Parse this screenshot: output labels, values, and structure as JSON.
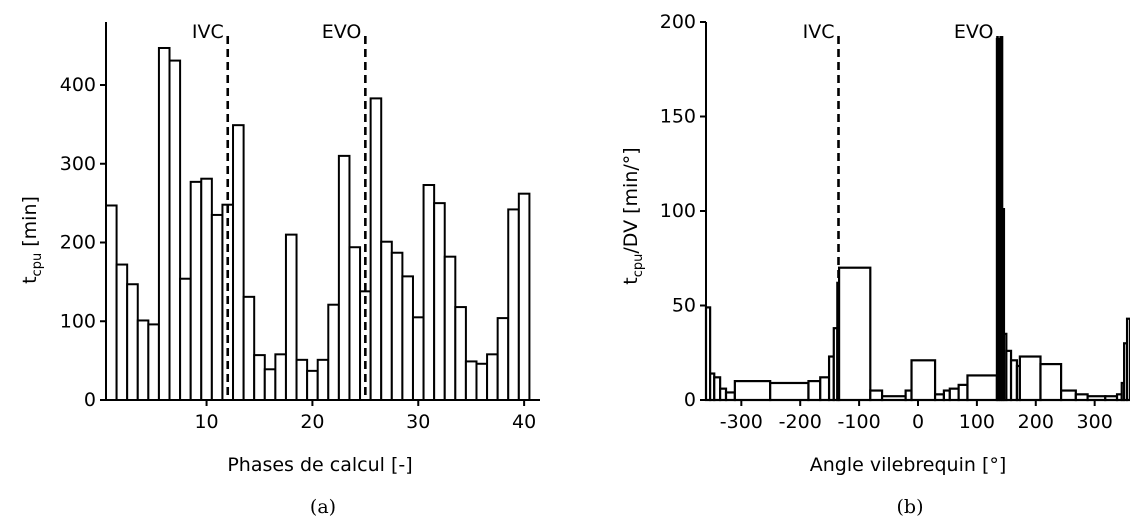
{
  "chart_data": [
    {
      "type": "bar",
      "panel_caption": "(a)",
      "xlabel": "Phases de calcul [-]",
      "ylabel_main": "t",
      "ylabel_sub": "cpu",
      "ylabel_unit": " [min]",
      "xlim": [
        0.5,
        41.5
      ],
      "ylim": [
        0,
        480
      ],
      "xticks": [
        10,
        20,
        30,
        40
      ],
      "yticks": [
        0,
        100,
        200,
        300,
        400
      ],
      "grid": false,
      "x": [
        1,
        2,
        3,
        4,
        5,
        6,
        7,
        8,
        9,
        10,
        11,
        12,
        13,
        14,
        15,
        16,
        17,
        18,
        19,
        20,
        21,
        22,
        23,
        24,
        25,
        26,
        27,
        28,
        29,
        30,
        31,
        32,
        33,
        34,
        35,
        36,
        37,
        38,
        39,
        40,
        41
      ],
      "values": [
        247,
        172,
        147,
        101,
        96,
        447,
        431,
        154,
        277,
        281,
        235,
        248,
        349,
        131,
        57,
        39,
        58,
        210,
        51,
        37,
        51,
        121,
        310,
        194,
        138,
        383,
        201,
        187,
        157,
        105,
        273,
        250,
        182,
        118,
        49,
        46,
        58,
        104,
        242,
        262,
        0
      ],
      "annotations": [
        {
          "label": "IVC",
          "x": 12
        },
        {
          "label": "EVO",
          "x": 25
        }
      ]
    },
    {
      "type": "bar",
      "panel_caption": "(b)",
      "xlabel": "Angle vilebrequin [°]",
      "ylabel_main": "t",
      "ylabel_sub": "cpu",
      "ylabel_unit": "/DV [min/°]",
      "xlim": [
        -360,
        360
      ],
      "ylim": [
        0,
        200
      ],
      "xticks": [
        -300,
        -200,
        -100,
        0,
        100,
        200,
        300
      ],
      "yticks": [
        0,
        50,
        100,
        150,
        200
      ],
      "grid": false,
      "bins": [
        {
          "x0": -360,
          "x1": -353,
          "value": 49
        },
        {
          "x0": -353,
          "x1": -346,
          "value": 14
        },
        {
          "x0": -346,
          "x1": -336,
          "value": 12
        },
        {
          "x0": -336,
          "x1": -326,
          "value": 6
        },
        {
          "x0": -326,
          "x1": -311,
          "value": 4
        },
        {
          "x0": -311,
          "x1": -251,
          "value": 10
        },
        {
          "x0": -251,
          "x1": -186,
          "value": 9
        },
        {
          "x0": -186,
          "x1": -166,
          "value": 10
        },
        {
          "x0": -166,
          "x1": -151,
          "value": 12
        },
        {
          "x0": -151,
          "x1": -143,
          "value": 23
        },
        {
          "x0": -143,
          "x1": -137,
          "value": 38
        },
        {
          "x0": -137,
          "x1": -134,
          "value": 62
        },
        {
          "x0": -134,
          "x1": -81,
          "value": 70
        },
        {
          "x0": -81,
          "x1": -61,
          "value": 5
        },
        {
          "x0": -61,
          "x1": -21,
          "value": 2
        },
        {
          "x0": -21,
          "x1": -11,
          "value": 5
        },
        {
          "x0": -11,
          "x1": 29,
          "value": 21
        },
        {
          "x0": 29,
          "x1": 44,
          "value": 3
        },
        {
          "x0": 44,
          "x1": 54,
          "value": 5
        },
        {
          "x0": 54,
          "x1": 69,
          "value": 6
        },
        {
          "x0": 69,
          "x1": 84,
          "value": 8
        },
        {
          "x0": 84,
          "x1": 134,
          "value": 13
        },
        {
          "x0": 134,
          "x1": 137,
          "value": 191
        },
        {
          "x0": 137,
          "x1": 140,
          "value": 188
        },
        {
          "x0": 140,
          "x1": 143,
          "value": 192
        },
        {
          "x0": 143,
          "x1": 146,
          "value": 101
        },
        {
          "x0": 146,
          "x1": 150,
          "value": 35
        },
        {
          "x0": 150,
          "x1": 158,
          "value": 26
        },
        {
          "x0": 158,
          "x1": 168,
          "value": 21
        },
        {
          "x0": 168,
          "x1": 173,
          "value": 18
        },
        {
          "x0": 173,
          "x1": 208,
          "value": 23
        },
        {
          "x0": 208,
          "x1": 243,
          "value": 19
        },
        {
          "x0": 243,
          "x1": 268,
          "value": 5
        },
        {
          "x0": 268,
          "x1": 288,
          "value": 3
        },
        {
          "x0": 288,
          "x1": 318,
          "value": 2
        },
        {
          "x0": 318,
          "x1": 338,
          "value": 2
        },
        {
          "x0": 338,
          "x1": 346,
          "value": 3
        },
        {
          "x0": 346,
          "x1": 350,
          "value": 9
        },
        {
          "x0": 350,
          "x1": 355,
          "value": 30
        },
        {
          "x0": 355,
          "x1": 360,
          "value": 43
        }
      ],
      "annotations": [
        {
          "label": "IVC",
          "x": -135
        },
        {
          "label": "EVO",
          "x": 135
        }
      ]
    }
  ]
}
